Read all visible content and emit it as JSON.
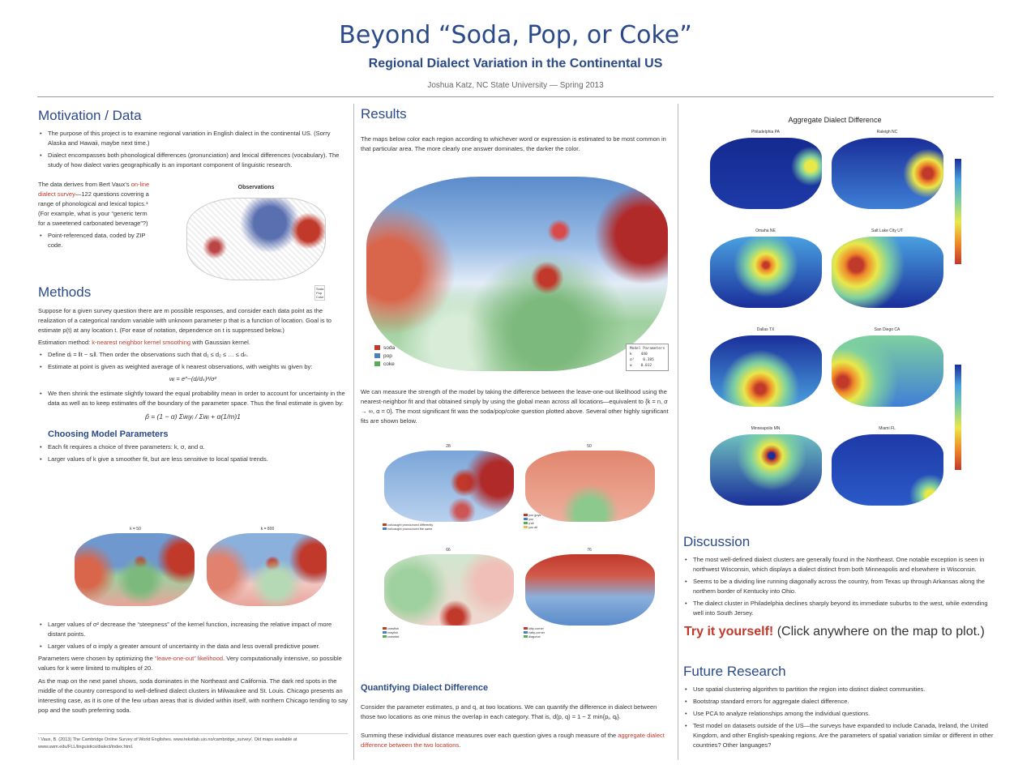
{
  "header": {
    "title": "Beyond “Soda, Pop, or Coke”",
    "subtitle": "Regional Dialect Variation in the Continental US",
    "author": "Joshua Katz, NC State University — Spring 2013"
  },
  "motivation": {
    "heading": "Motivation / Data",
    "bullet1": "The purpose of this project is to examine regional variation in English dialect in the continental US. (Sorry Alaska and Hawaii, maybe next time.)",
    "bullet2": "Dialect encompasses both phonological differences (pronunciation) and lexical differences (vocabulary). The study of how dialect varies geographically is an important component of linguistic research.",
    "para_a": "The data derives from Bert Vaux's",
    "para_link": "on-line dialect survey",
    "para_b": "—122 questions covering a range of phonological and lexical topics.¹ (For example, what is your “generic term for a sweetened carbonated beverage”?)",
    "bullet3": "Point-referenced data, coded by ZIP code.",
    "obs_title": "Observations",
    "obs_legend": [
      "Soda",
      "Pop",
      "Coke"
    ]
  },
  "methods": {
    "heading": "Methods",
    "para1": "Suppose for a given survey question there are m possible responses, and consider each data point as the realization of a categorical random variable with unknown parameter p that is a function of location. Goal is to estimate p(t) at any location t. (For ease of notation, dependence on t is suppressed below.)",
    "est_a": "Estimation method:",
    "est_link": "k-nearest neighbor kernel smoothing",
    "est_b": "with Gaussian kernel.",
    "bullet1": "Define dᵢ = ‖t − sᵢ‖. Then order the observations such that d₁ ≤ d₂ ≤ … ≤ dₙ.",
    "bullet2": "Estimate at point is given as weighted average of k nearest observations, with weights wᵢ given by:",
    "formula1": "wᵢ = e^−(dᵢ/dₖ)²/σ²",
    "bullet3": "We then shrink the estimate slightly toward the equal probability mean in order to account for uncertainty in the data as well as to keep estimates off the boundary of the parameter space. Thus the final estimate is given by:",
    "formula2": "p̂ = (1 − α) Σwᵢyᵢ / Σwᵢ + α(1/m)1",
    "sub_heading": "Choosing Model Parameters",
    "bullet4": "Each fit requires a choice of three parameters: k, σ, and α.",
    "bullet5": "Larger values of k give a smoother fit, but are less sensitive to local spatial trends.",
    "map_k50": "k = 50",
    "map_k800": "k = 800",
    "bullet6": "Larger values of σ² decrease the “steepness” of the kernel function, increasing the relative impact of more distant points.",
    "bullet7": "Larger values of α imply a greater amount of uncertainty in the data and less overall predictive power.",
    "para2_a": "Parameters were chosen by optimizing the",
    "para2_link": "“leave-one-out” likelihood",
    "para2_b": ". Very computationally intensive, so possible values for k were limited to multiples of 20.",
    "para3": "As the map on the next panel shows, soda dominates in the Northeast and California. The dark red spots in the middle of the country correspond to well-defined dialect clusters in Milwaukee and St. Louis. Chicago presents an interesting case, as it is one of the few urban areas that is divided within itself, with northern Chicago tending to say pop and the south preferring soda.",
    "footnote": "¹ Vaux, B. (2013) The Cambridge Online Survey of World Englishes. www.tekstlab.uio.no/cambridge_survey/. Old maps available at www.uwm.edu/FLL/linguistics/dialect/index.html."
  },
  "results": {
    "heading": "Results",
    "intro": "The maps below color each region according to whichever word or expression is estimated to be most common in that particular area. The more clearly one answer dominates, the darker the color.",
    "legend": [
      "soda",
      "pop",
      "coke"
    ],
    "params_title": "Model Parameters",
    "params": [
      [
        "k",
        "440"
      ],
      [
        "σ²",
        "0.385"
      ],
      [
        "α",
        "0.012"
      ]
    ],
    "para2": "We can measure the strength of the model by taking the difference between the leave-one-out likelihood using the nearest-neighbor fit and that obtained simply by using the global mean across all locations—equivalent to {k = n, σ → ∞, α = 0}. The most significant fit was the soda/pop/coke question plotted above. Several other highly significant fits are shown below.",
    "small_maps": [
      {
        "num": "28",
        "legend": [
          "cot/caught pronounced differently",
          "cot/caught pronounced the same"
        ]
      },
      {
        "num": "50",
        "legend": [
          "you guys",
          "you",
          "y'all",
          "you all"
        ]
      },
      {
        "num": "66",
        "legend": [
          "crawfish",
          "crayfish",
          "crawdad"
        ]
      },
      {
        "num": "76",
        "legend": [
          "kitty-corner",
          "catty-corner",
          "diagonal"
        ]
      }
    ],
    "quant_heading": "Quantifying Dialect Difference",
    "quant_para": "Consider the parameter estimates, p and q, at two locations. We can quantify the difference in dialect between those two locations as one minus the overlap in each category. That is, d(p, q) = 1 − Σ min{pⱼ, qⱼ}.",
    "sum_a": "Summing these individual distance measures over each question gives a rough measure of the",
    "sum_link": "aggregate dialect difference between the two locations",
    "sum_b": "."
  },
  "aggregate": {
    "title": "Aggregate Dialect Difference",
    "cities": [
      "Philadelphia PA",
      "Raleigh NC",
      "Omaha NE",
      "Salt Lake City UT",
      "Dallas TX",
      "San Diego CA",
      "Minneapolis MN",
      "Miami FL"
    ]
  },
  "discussion": {
    "heading": "Discussion",
    "bullet1": "The most well-defined dialect clusters are generally found in the Northeast. One notable exception is seen in northwest Wisconsin, which displays a dialect distinct from both Minneapolis and elsewhere in Wisconsin.",
    "bullet2": "Seems to be a dividing line running diagonally across the country, from Texas up through Arkansas along the northern border of Kentucky into Ohio.",
    "bullet3": "The dialect cluster in Philadelphia declines sharply beyond its immediate suburbs to the west, while extending well into South Jersey.",
    "try_red": "Try it yourself!",
    "try_rest": "(Click anywhere on the map to plot.)"
  },
  "future": {
    "heading": "Future Research",
    "bullets": [
      "Use spatial clustering algorithm to partition the region into distinct dialect communities.",
      "Bootstrap standard errors for aggregate dialect difference.",
      "Use PCA to analyze relationships among the individual questions.",
      "Test model on datasets outside of the US—the surveys have expanded to include Canada, Ireland, the United Kingdom, and other English-speaking regions. Are the parameters of spatial variation similar or different in other countries? Other languages?"
    ]
  },
  "colors": {
    "soda": "#c0392b",
    "pop": "#4a7fc0",
    "coke": "#5aaa5a",
    "accent": "#2a4a8a"
  }
}
